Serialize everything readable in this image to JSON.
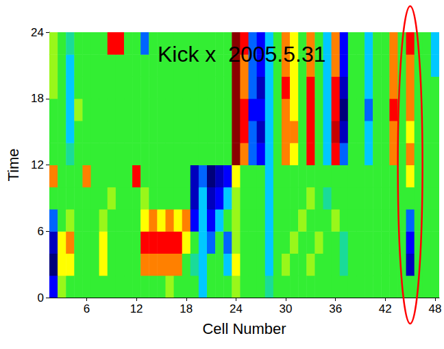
{
  "chart_data": {
    "type": "heatmap",
    "title": "Kick x  2005.5.31",
    "x_label": "Cell Number",
    "y_label": "Time",
    "xlim": [
      1.5,
      48.5
    ],
    "xticks": [
      6,
      12,
      18,
      24,
      30,
      36,
      42,
      48
    ],
    "ylim": [
      0,
      24
    ],
    "yticks": [
      0,
      6,
      12,
      18,
      24
    ],
    "color_range": [
      -3,
      3
    ],
    "annotation": {
      "shape": "ellipse",
      "x": 45,
      "color": "#ff0000"
    },
    "cells": {
      "x": [
        2,
        3,
        4,
        5,
        6,
        7,
        8,
        9,
        10,
        11,
        12,
        13,
        14,
        15,
        16,
        17,
        18,
        19,
        20,
        21,
        22,
        23,
        24,
        25,
        26,
        27,
        28,
        29,
        30,
        31,
        32,
        33,
        34,
        35,
        36,
        37,
        38,
        39,
        40,
        41,
        42,
        43,
        44,
        45,
        46,
        47,
        48
      ],
      "time": [
        1,
        3,
        5,
        7,
        9,
        11,
        13,
        15,
        17,
        19,
        21,
        23
      ],
      "values": [
        [
          -2,
          0.5,
          0,
          0,
          0,
          0,
          0,
          0,
          0,
          0,
          0,
          0,
          0,
          0,
          0.5,
          0,
          0,
          0,
          -1,
          0,
          0,
          0,
          0.5,
          0,
          0,
          0,
          -0.5,
          0,
          0,
          0,
          0,
          0,
          0,
          0,
          0,
          0,
          0,
          0,
          0,
          0,
          0,
          0,
          0,
          0,
          0,
          0,
          0
        ],
        [
          -3,
          1,
          1,
          0,
          0,
          0,
          1,
          0,
          0,
          0,
          0,
          1.5,
          1.5,
          1.5,
          1.5,
          1.5,
          0,
          -0.5,
          -1,
          0,
          0,
          -1,
          1,
          0,
          0,
          0,
          -1,
          0,
          0.5,
          0,
          0,
          0.5,
          0,
          0,
          0,
          -0.5,
          0,
          0,
          0,
          0,
          0,
          0,
          0,
          -2.5,
          0,
          0,
          0
        ],
        [
          -2.5,
          1,
          1.5,
          0,
          0,
          0,
          1,
          0,
          0,
          0,
          0,
          2,
          2,
          2,
          2,
          2,
          1,
          0,
          -1,
          -1.5,
          0,
          -1.5,
          0.5,
          0,
          0,
          0,
          -1,
          0,
          0,
          0.5,
          0,
          0,
          0.5,
          0,
          0,
          -0.5,
          0,
          0,
          0,
          0,
          0,
          0,
          0,
          -2,
          0,
          0,
          0
        ],
        [
          -1.5,
          0,
          0.5,
          0,
          0,
          0,
          0.5,
          0,
          0,
          0,
          0,
          1,
          1.5,
          1,
          1.5,
          1,
          1.5,
          -2,
          -1,
          -2,
          -1,
          0,
          0.5,
          0,
          0,
          0,
          -1,
          0,
          0,
          0,
          0.5,
          0,
          0,
          0,
          0.5,
          0,
          0,
          0,
          0,
          0,
          0,
          0,
          0,
          -1.5,
          0,
          0,
          0
        ],
        [
          0,
          0,
          0,
          0,
          0,
          0,
          0,
          0.5,
          0,
          0,
          0,
          0.5,
          0,
          0,
          0,
          0,
          0,
          -2.5,
          -1,
          -2.5,
          -2,
          -1,
          0.5,
          0,
          0,
          0,
          -1,
          0,
          0,
          0,
          0,
          0.5,
          0,
          -0.5,
          0,
          0,
          0,
          0,
          0,
          0,
          0,
          0,
          0,
          0,
          0,
          0,
          0
        ],
        [
          1.5,
          0,
          0,
          0,
          1.5,
          0,
          0,
          0,
          0,
          0,
          2,
          0,
          0,
          0,
          0,
          0,
          0,
          -2.5,
          -1.5,
          -3,
          -2.5,
          -2,
          1,
          0,
          0,
          0,
          -1,
          0,
          0,
          0,
          0,
          0,
          0,
          0,
          0,
          0,
          0,
          0,
          0,
          0,
          0,
          0,
          0,
          1,
          0,
          0,
          0
        ],
        [
          0,
          0,
          -0.5,
          0,
          0,
          0,
          0,
          0,
          0,
          0,
          0,
          0,
          0,
          0,
          0,
          0,
          0,
          0,
          0,
          0,
          0,
          0,
          3,
          1.5,
          -1.5,
          -2,
          -1,
          0,
          1.5,
          1,
          0,
          2,
          0,
          -1,
          2,
          -1.5,
          0,
          0,
          -1,
          0,
          0,
          1.5,
          0,
          1.5,
          0,
          0,
          0
        ],
        [
          0,
          0,
          -1,
          0,
          0,
          0,
          0,
          0,
          0,
          0,
          0,
          0,
          0,
          0,
          0,
          0,
          0,
          0,
          0,
          0,
          0,
          0,
          3,
          2,
          -1.5,
          -2.5,
          -1,
          0,
          1.5,
          1.5,
          0,
          2,
          0,
          -1,
          2.5,
          -2.5,
          0,
          0,
          -1,
          0,
          0,
          1.5,
          0,
          1,
          0,
          0,
          0
        ],
        [
          0,
          0,
          -1,
          0.5,
          0,
          0,
          0,
          0,
          0,
          0,
          0,
          0,
          0,
          0,
          0,
          0,
          0,
          0,
          0,
          0,
          0,
          0,
          3,
          2,
          -2,
          -2,
          -1,
          0,
          1.5,
          1,
          0,
          2,
          0,
          -1,
          2,
          -3,
          0,
          0,
          -1.5,
          0,
          0,
          2,
          0,
          1.5,
          0,
          0,
          0
        ],
        [
          0.5,
          0,
          -1,
          0,
          0,
          0,
          0,
          0,
          0,
          0,
          0,
          0,
          0,
          0,
          0,
          0,
          0,
          0,
          0,
          0,
          0,
          0,
          3,
          1.5,
          -1.5,
          -2.5,
          -1,
          0,
          2,
          1,
          0,
          2,
          0,
          -1,
          2,
          -2.5,
          0,
          0,
          -1,
          0,
          0,
          1.5,
          0,
          1.5,
          0,
          0,
          0
        ],
        [
          0.5,
          0,
          -1,
          0,
          0,
          0,
          0,
          0,
          0,
          0,
          0,
          0,
          0,
          0,
          0,
          0,
          0,
          0,
          0,
          0,
          0,
          0,
          3,
          1.5,
          -1.5,
          -2,
          -1,
          0,
          1.5,
          1,
          0,
          1.5,
          0,
          -1,
          1.5,
          -2,
          0,
          0,
          -1,
          0,
          0,
          1.5,
          0,
          1.5,
          0,
          0,
          -1
        ],
        [
          0.5,
          0,
          -0.5,
          0,
          0,
          0,
          0,
          2,
          2,
          0,
          0,
          -1.5,
          0,
          0,
          0,
          0,
          0,
          0,
          0,
          0,
          0,
          0,
          3,
          2,
          -1.5,
          -2,
          -1,
          0,
          1.5,
          1,
          0,
          1.5,
          0,
          -1,
          1.5,
          -2,
          0,
          0,
          -1,
          0,
          0,
          1.5,
          0,
          2,
          0,
          0,
          -1
        ]
      ]
    }
  }
}
